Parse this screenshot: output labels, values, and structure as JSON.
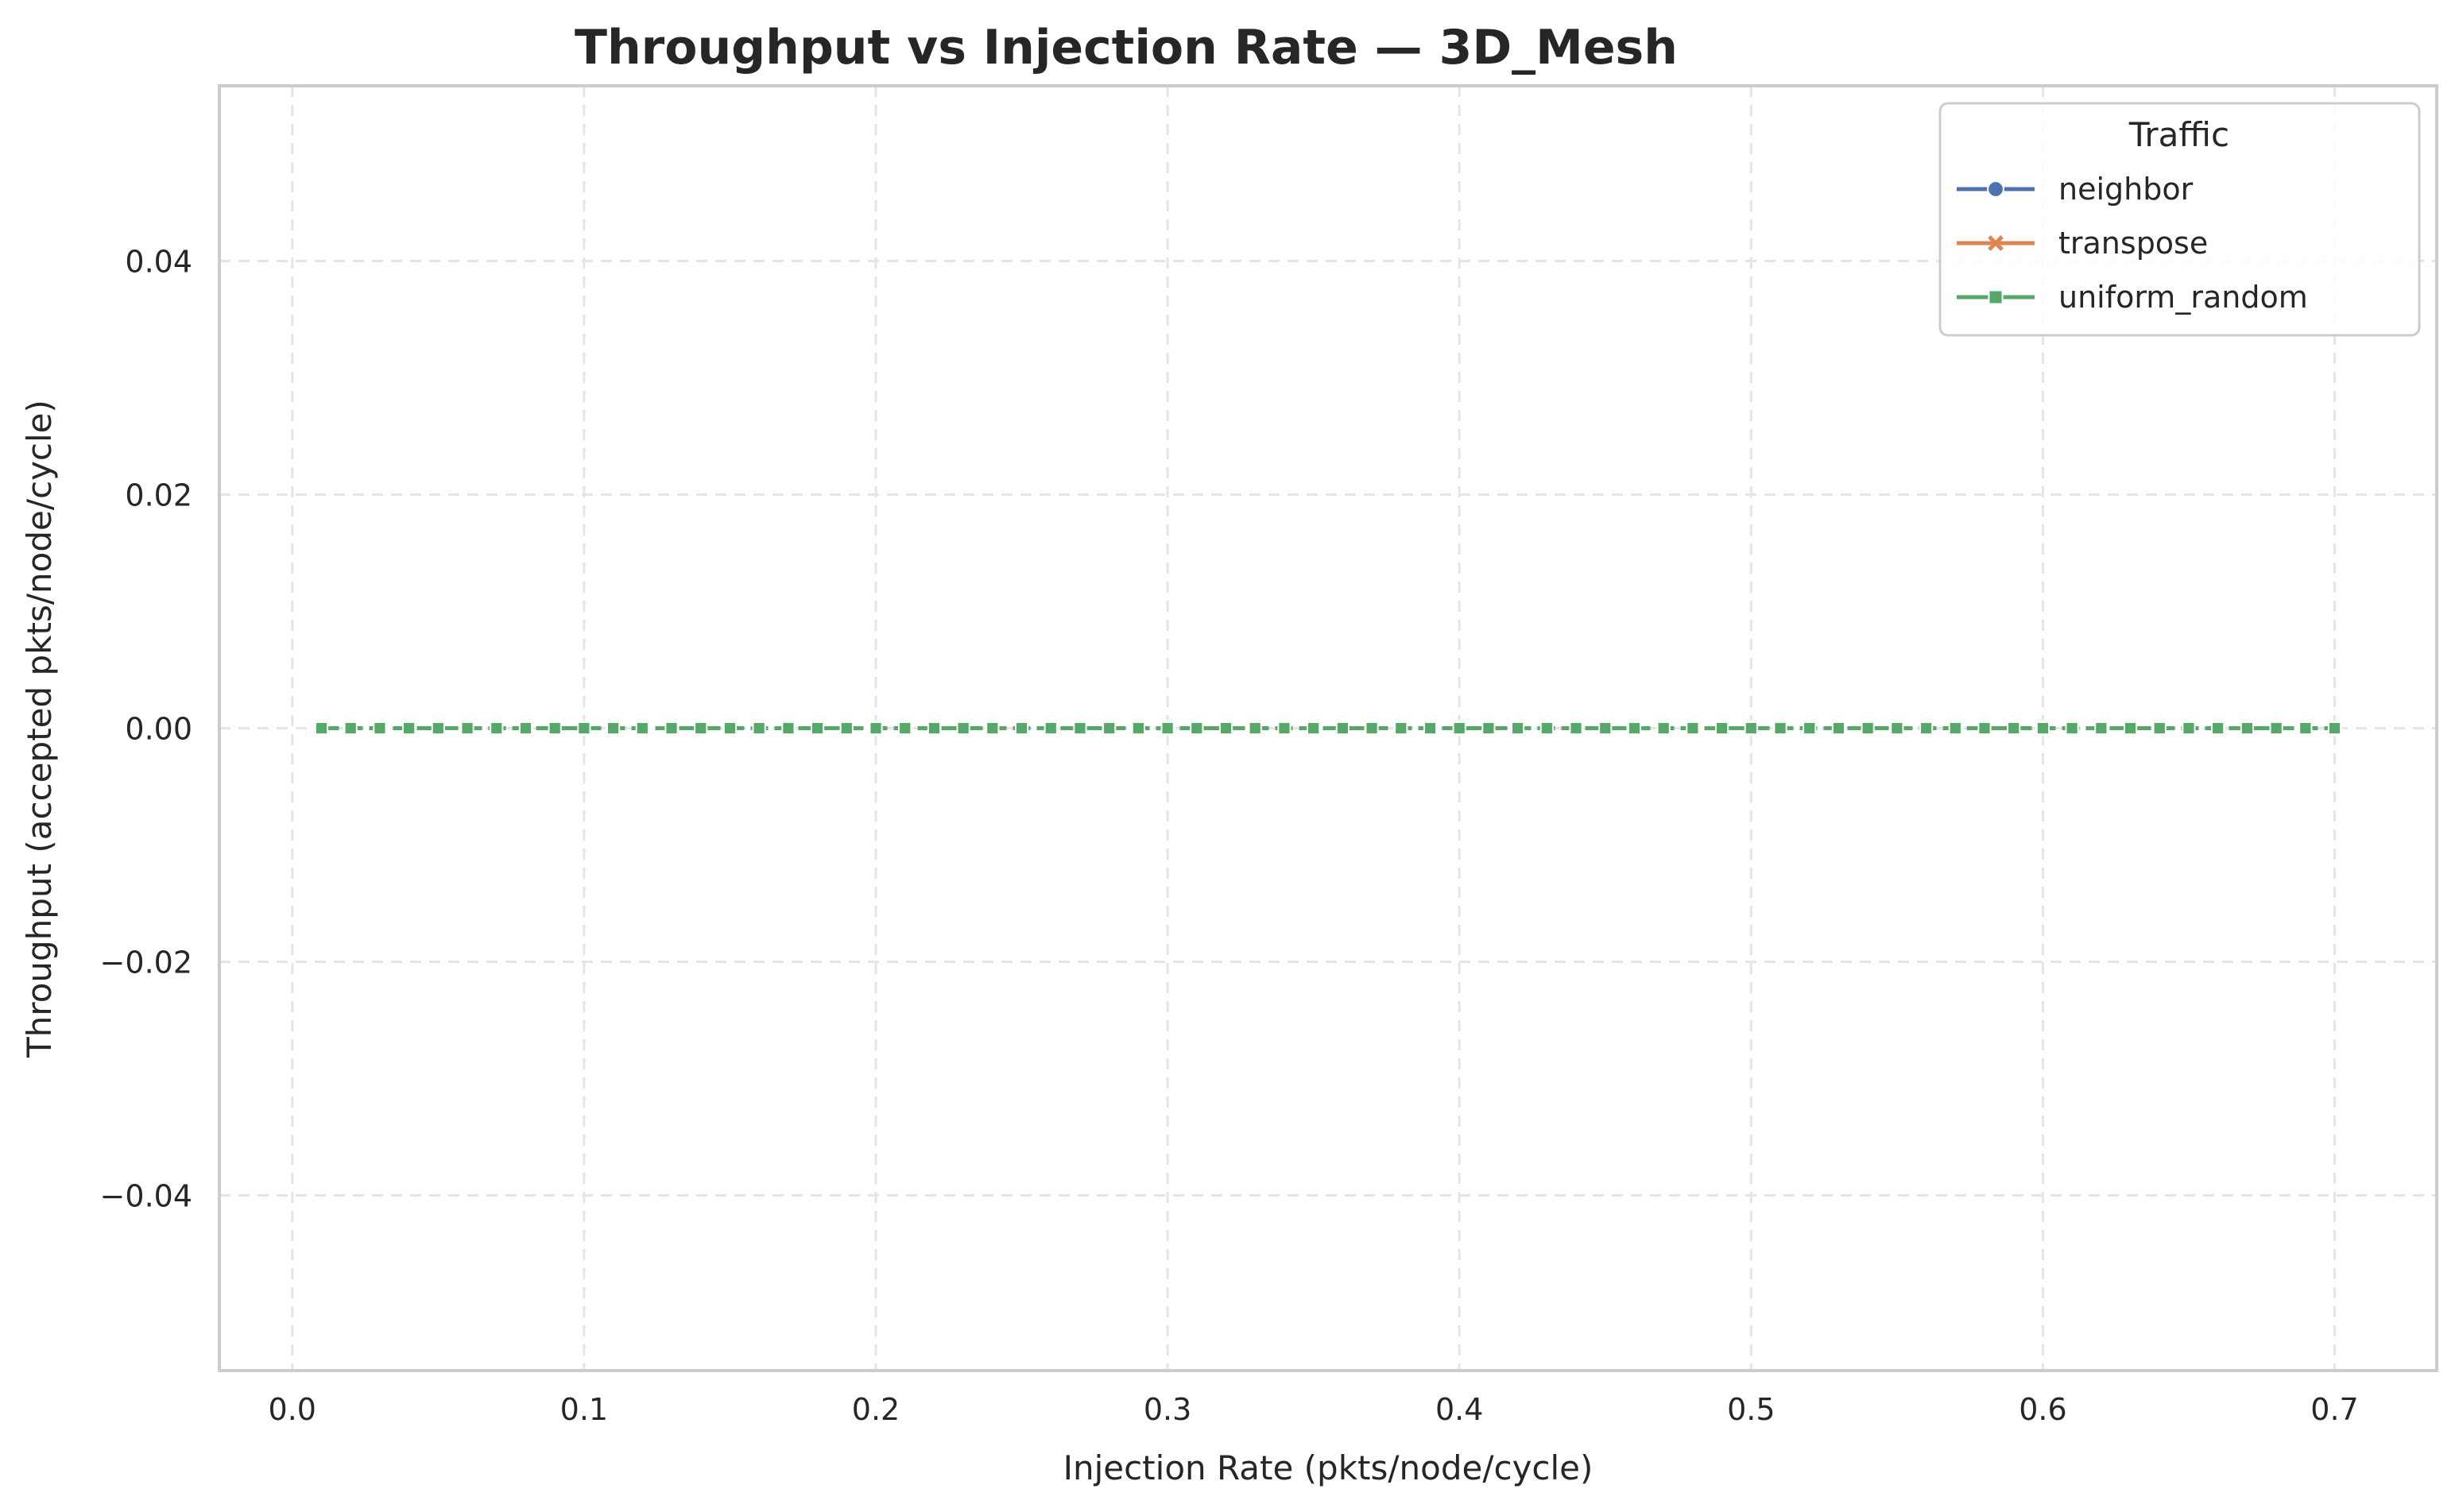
{
  "chart_data": {
    "type": "line",
    "title": "Throughput vs Injection Rate — 3D_Mesh",
    "xlabel": "Injection Rate (pkts/node/cycle)",
    "ylabel": "Throughput (accepted pkts/node/cycle)",
    "xlim": [
      -0.025,
      0.735
    ],
    "ylim": [
      -0.055,
      0.055
    ],
    "xticks": [
      0.0,
      0.1,
      0.2,
      0.3,
      0.4,
      0.5,
      0.6,
      0.7
    ],
    "xtick_labels": [
      "0.0",
      "0.1",
      "0.2",
      "0.3",
      "0.4",
      "0.5",
      "0.6",
      "0.7"
    ],
    "yticks": [
      -0.04,
      -0.02,
      0.0,
      0.02,
      0.04
    ],
    "ytick_labels": [
      "−0.04",
      "−0.02",
      "0.00",
      "0.02",
      "0.04"
    ],
    "grid": true,
    "grid_style": "dashed",
    "legend": {
      "title": "Traffic",
      "placement": "top-right"
    },
    "x_range_note": "series sampled at 0.01 steps from 0.01 to 0.70",
    "series": [
      {
        "name": "neighbor",
        "color": "#4c72b0",
        "marker": "circle",
        "x_start": 0.01,
        "x_end": 0.7,
        "x_step": 0.01,
        "y_constant": 0.0
      },
      {
        "name": "transpose",
        "color": "#dd8452",
        "marker": "x",
        "x_start": 0.01,
        "x_end": 0.7,
        "x_step": 0.01,
        "y_constant": 0.0
      },
      {
        "name": "uniform_random",
        "color": "#55a868",
        "marker": "square",
        "x_start": 0.01,
        "x_end": 0.7,
        "x_step": 0.01,
        "y_constant": 0.0
      }
    ]
  }
}
